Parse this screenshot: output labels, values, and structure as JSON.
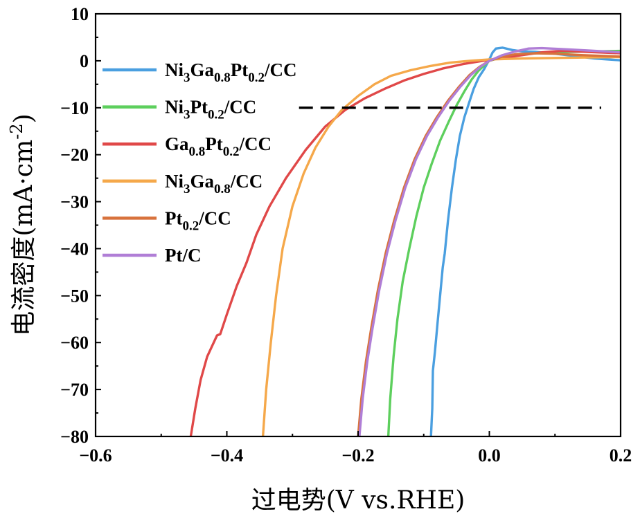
{
  "chart_data": {
    "type": "line",
    "title": "",
    "xlabel": "过电势(V vs.RHE)",
    "ylabel_main": "电流密度(mA·cm",
    "ylabel_sup": "-2",
    "ylabel_close": ")",
    "xlim": [
      -0.6,
      0.2
    ],
    "ylim": [
      -80,
      10
    ],
    "xticks": [
      -0.6,
      -0.4,
      -0.2,
      0.0,
      0.2
    ],
    "xtick_labels": [
      "−0.6",
      "−0.4",
      "−0.2",
      "0.0",
      "0.2"
    ],
    "yticks": [
      -80,
      -70,
      -60,
      -50,
      -40,
      -30,
      -20,
      -10,
      0,
      10
    ],
    "ytick_labels": [
      "−80",
      "−70",
      "−60",
      "−50",
      "−40",
      "−30",
      "−20",
      "−10",
      "0",
      "10"
    ],
    "reference_line": {
      "y": -10,
      "x_range": [
        -0.29,
        0.2
      ],
      "style": "dashed",
      "color": "#000000"
    },
    "legend_position": "upper-left",
    "grid": false,
    "series": [
      {
        "name": "Ni3Ga0.8Pt0.2/CC",
        "label_parts": [
          [
            "Ni",
            "n"
          ],
          [
            "3",
            "sub"
          ],
          [
            "Ga",
            "n"
          ],
          [
            "0.8",
            "sub"
          ],
          [
            "Pt",
            "n"
          ],
          [
            "0.2",
            "sub"
          ],
          [
            "/CC",
            "n"
          ]
        ],
        "color": "#4A9FE0",
        "points": [
          [
            -0.089,
            -80
          ],
          [
            -0.087,
            -74
          ],
          [
            -0.086,
            -66
          ],
          [
            -0.083,
            -62
          ],
          [
            -0.079,
            -56
          ],
          [
            -0.075,
            -50
          ],
          [
            -0.071,
            -44
          ],
          [
            -0.068,
            -41
          ],
          [
            -0.063,
            -34
          ],
          [
            -0.057,
            -27
          ],
          [
            -0.051,
            -21
          ],
          [
            -0.045,
            -16
          ],
          [
            -0.038,
            -12
          ],
          [
            -0.031,
            -9
          ],
          [
            -0.024,
            -6
          ],
          [
            -0.016,
            -3.5
          ],
          [
            -0.008,
            -1.8
          ],
          [
            0.0,
            0.3
          ],
          [
            0.005,
            1.8
          ],
          [
            0.01,
            2.6
          ],
          [
            0.02,
            2.8
          ],
          [
            0.035,
            2.3
          ],
          [
            0.05,
            2.0
          ],
          [
            0.07,
            1.9
          ],
          [
            0.1,
            1.5
          ],
          [
            0.13,
            1.0
          ],
          [
            0.16,
            0.5
          ],
          [
            0.2,
            0.1
          ]
        ]
      },
      {
        "name": "Ni3Pt0.2/CC",
        "label_parts": [
          [
            "Ni",
            "n"
          ],
          [
            "3",
            "sub"
          ],
          [
            "Pt",
            "n"
          ],
          [
            "0.2",
            "sub"
          ],
          [
            "/CC",
            "n"
          ]
        ],
        "color": "#5DCF5D",
        "points": [
          [
            -0.154,
            -80
          ],
          [
            -0.151,
            -72
          ],
          [
            -0.146,
            -63
          ],
          [
            -0.14,
            -55
          ],
          [
            -0.132,
            -47
          ],
          [
            -0.122,
            -40
          ],
          [
            -0.111,
            -33
          ],
          [
            -0.1,
            -27
          ],
          [
            -0.088,
            -22
          ],
          [
            -0.075,
            -17
          ],
          [
            -0.062,
            -13
          ],
          [
            -0.05,
            -9.5
          ],
          [
            -0.038,
            -6.5
          ],
          [
            -0.027,
            -4
          ],
          [
            -0.017,
            -2.2
          ],
          [
            -0.008,
            -1
          ],
          [
            0.0,
            0
          ],
          [
            0.02,
            0.8
          ],
          [
            0.05,
            1.4
          ],
          [
            0.08,
            1.7
          ],
          [
            0.12,
            1.9
          ],
          [
            0.16,
            2.0
          ],
          [
            0.2,
            2.1
          ]
        ]
      },
      {
        "name": "Ga0.8Pt0.2/CC",
        "label_parts": [
          [
            "Ga",
            "n"
          ],
          [
            "0.8",
            "sub"
          ],
          [
            "Pt",
            "n"
          ],
          [
            "0.2",
            "sub"
          ],
          [
            "/CC",
            "n"
          ]
        ],
        "color": "#E04848",
        "points": [
          [
            -0.455,
            -80
          ],
          [
            -0.448,
            -74
          ],
          [
            -0.44,
            -68
          ],
          [
            -0.43,
            -63
          ],
          [
            -0.415,
            -58.5
          ],
          [
            -0.41,
            -58.2
          ],
          [
            -0.4,
            -54
          ],
          [
            -0.385,
            -48
          ],
          [
            -0.37,
            -43
          ],
          [
            -0.355,
            -37
          ],
          [
            -0.335,
            -31
          ],
          [
            -0.31,
            -25
          ],
          [
            -0.28,
            -19
          ],
          [
            -0.25,
            -14
          ],
          [
            -0.22,
            -10.5
          ],
          [
            -0.19,
            -8
          ],
          [
            -0.16,
            -6
          ],
          [
            -0.13,
            -4.2
          ],
          [
            -0.1,
            -2.8
          ],
          [
            -0.07,
            -1.6
          ],
          [
            -0.04,
            -0.7
          ],
          [
            -0.01,
            0
          ],
          [
            0.02,
            0.6
          ],
          [
            0.05,
            1.2
          ],
          [
            0.08,
            1.8
          ],
          [
            0.11,
            2.1
          ],
          [
            0.15,
            1.9
          ],
          [
            0.2,
            1.6
          ]
        ]
      },
      {
        "name": "Ni3Ga0.8/CC",
        "label_parts": [
          [
            "Ni",
            "n"
          ],
          [
            "3",
            "sub"
          ],
          [
            "Ga",
            "n"
          ],
          [
            "0.8",
            "sub"
          ],
          [
            "/CC",
            "n"
          ]
        ],
        "color": "#F5A84A",
        "points": [
          [
            -0.345,
            -80
          ],
          [
            -0.34,
            -70
          ],
          [
            -0.333,
            -60
          ],
          [
            -0.325,
            -50
          ],
          [
            -0.315,
            -40
          ],
          [
            -0.3,
            -31
          ],
          [
            -0.283,
            -24
          ],
          [
            -0.265,
            -18.5
          ],
          [
            -0.245,
            -14
          ],
          [
            -0.225,
            -10.5
          ],
          [
            -0.2,
            -7.5
          ],
          [
            -0.175,
            -5
          ],
          [
            -0.15,
            -3.2
          ],
          [
            -0.12,
            -2
          ],
          [
            -0.09,
            -1.1
          ],
          [
            -0.06,
            -0.4
          ],
          [
            -0.03,
            0
          ],
          [
            0.0,
            0.3
          ],
          [
            0.05,
            0.5
          ],
          [
            0.1,
            0.6
          ],
          [
            0.15,
            0.7
          ],
          [
            0.2,
            0.8
          ]
        ]
      },
      {
        "name": "Pt0.2/CC",
        "label_parts": [
          [
            "Pt",
            "n"
          ],
          [
            "0.2",
            "sub"
          ],
          [
            "/CC",
            "n"
          ]
        ],
        "color": "#D8723C",
        "points": [
          [
            -0.2,
            -80
          ],
          [
            -0.195,
            -72
          ],
          [
            -0.188,
            -64
          ],
          [
            -0.18,
            -57
          ],
          [
            -0.17,
            -49
          ],
          [
            -0.158,
            -41
          ],
          [
            -0.145,
            -34
          ],
          [
            -0.13,
            -27
          ],
          [
            -0.114,
            -21
          ],
          [
            -0.097,
            -16
          ],
          [
            -0.08,
            -12
          ],
          [
            -0.063,
            -8.5
          ],
          [
            -0.046,
            -5.5
          ],
          [
            -0.03,
            -3
          ],
          [
            -0.015,
            -1.3
          ],
          [
            0.0,
            0
          ],
          [
            0.02,
            0.9
          ],
          [
            0.04,
            1.4
          ],
          [
            0.07,
            1.6
          ],
          [
            0.1,
            1.5
          ],
          [
            0.14,
            1.2
          ],
          [
            0.2,
            0.9
          ]
        ]
      },
      {
        "name": "Pt/C",
        "label_parts": [
          [
            "Pt/C",
            "n"
          ]
        ],
        "color": "#B07ED6",
        "points": [
          [
            -0.198,
            -80
          ],
          [
            -0.193,
            -72
          ],
          [
            -0.186,
            -64
          ],
          [
            -0.178,
            -57
          ],
          [
            -0.168,
            -49
          ],
          [
            -0.156,
            -41
          ],
          [
            -0.143,
            -34
          ],
          [
            -0.128,
            -27
          ],
          [
            -0.112,
            -21
          ],
          [
            -0.095,
            -16
          ],
          [
            -0.078,
            -12
          ],
          [
            -0.061,
            -8.5
          ],
          [
            -0.044,
            -5.5
          ],
          [
            -0.028,
            -3
          ],
          [
            -0.013,
            -1.2
          ],
          [
            0.0,
            0
          ],
          [
            0.02,
            1.2
          ],
          [
            0.04,
            2.0
          ],
          [
            0.06,
            2.6
          ],
          [
            0.08,
            2.7
          ],
          [
            0.11,
            2.5
          ],
          [
            0.15,
            2.2
          ],
          [
            0.2,
            1.8
          ]
        ]
      }
    ]
  }
}
